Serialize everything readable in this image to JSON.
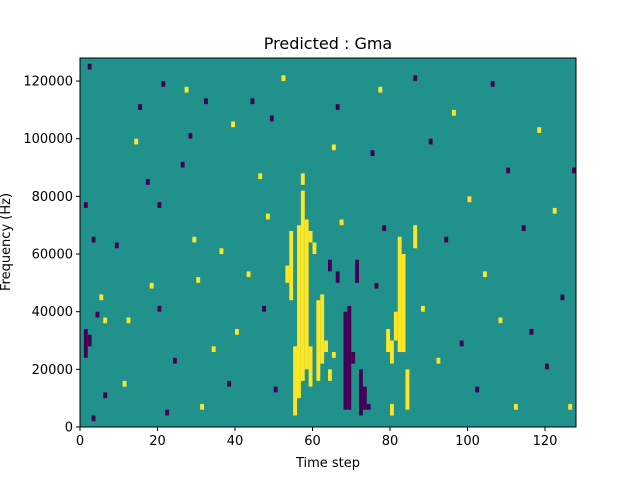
{
  "chart_data": {
    "type": "heatmap",
    "title": "Predicted : Gma",
    "xlabel": "Time step",
    "ylabel": "Frequency (Hz)",
    "xlim": [
      0,
      128
    ],
    "ylim": [
      0,
      128000
    ],
    "grid": false,
    "legend": "none",
    "x_ticks": [
      0,
      20,
      40,
      60,
      80,
      100,
      120
    ],
    "y_ticks": [
      0,
      20000,
      40000,
      60000,
      80000,
      100000,
      120000
    ],
    "n_time_steps": 128,
    "n_freq_bins": 128,
    "bin_height_hz": 1000,
    "value_range": [
      -1,
      1
    ],
    "colors": {
      "background": "#21918c",
      "low": "#440154",
      "high": "#fde725"
    },
    "cells": [
      {
        "t": 55,
        "f0": 4000,
        "f1": 28000,
        "v": 1
      },
      {
        "t": 56,
        "f0": 10000,
        "f1": 70000,
        "v": 1
      },
      {
        "t": 57,
        "f0": 16000,
        "f1": 82000,
        "v": 1
      },
      {
        "t": 58,
        "f0": 20000,
        "f1": 72000,
        "v": 1
      },
      {
        "t": 59,
        "f0": 14000,
        "f1": 28000,
        "v": 1
      },
      {
        "t": 54,
        "f0": 44000,
        "f1": 68000,
        "v": 1
      },
      {
        "t": 53,
        "f0": 50000,
        "f1": 56000,
        "v": 1
      },
      {
        "t": 60,
        "f0": 60000,
        "f1": 64000,
        "v": 1
      },
      {
        "t": 61,
        "f0": 16000,
        "f1": 44000,
        "v": 1
      },
      {
        "t": 62,
        "f0": 22000,
        "f1": 46000,
        "v": 1
      },
      {
        "t": 63,
        "f0": 26000,
        "f1": 30000,
        "v": 1
      },
      {
        "t": 64,
        "f0": 16000,
        "f1": 20000,
        "v": 1
      },
      {
        "t": 82,
        "f0": 26000,
        "f1": 66000,
        "v": 1
      },
      {
        "t": 83,
        "f0": 26000,
        "f1": 60000,
        "v": 1
      },
      {
        "t": 84,
        "f0": 6000,
        "f1": 20000,
        "v": 1
      },
      {
        "t": 81,
        "f0": 30000,
        "f1": 40000,
        "v": 1
      },
      {
        "t": 80,
        "f0": 4000,
        "f1": 8000,
        "v": 1
      },
      {
        "t": 86,
        "f0": 62000,
        "f1": 70000,
        "v": 1
      },
      {
        "t": 80,
        "f0": 22000,
        "f1": 30000,
        "v": 1
      },
      {
        "t": 79,
        "f0": 26000,
        "f1": 34000,
        "v": 1
      },
      {
        "t": 65,
        "f0": 24000,
        "f1": 26000,
        "v": 1
      },
      {
        "t": 57,
        "f0": 84000,
        "f1": 88000,
        "v": 1
      },
      {
        "t": 59,
        "f0": 64000,
        "f1": 68000,
        "v": 1
      },
      {
        "t": 68,
        "f0": 6000,
        "f1": 40000,
        "v": -1
      },
      {
        "t": 69,
        "f0": 6000,
        "f1": 42000,
        "v": -1
      },
      {
        "t": 70,
        "f0": 22000,
        "f1": 26000,
        "v": -1
      },
      {
        "t": 71,
        "f0": 50000,
        "f1": 58000,
        "v": -1
      },
      {
        "t": 72,
        "f0": 4000,
        "f1": 20000,
        "v": -1
      },
      {
        "t": 73,
        "f0": 6000,
        "f1": 14000,
        "v": -1
      },
      {
        "t": 74,
        "f0": 6000,
        "f1": 8000,
        "v": -1
      },
      {
        "t": 66,
        "f0": 50000,
        "f1": 54000,
        "v": -1
      },
      {
        "t": 64,
        "f0": 54000,
        "f1": 58000,
        "v": -1
      },
      {
        "t": 1,
        "f0": 24000,
        "f1": 34000,
        "v": -1
      },
      {
        "t": 2,
        "f0": 28000,
        "f1": 32000,
        "v": -1
      },
      {
        "t": 3,
        "f0": 2000,
        "f1": 4000,
        "v": -1
      },
      {
        "t": 2,
        "f0": 124000,
        "f1": 126000,
        "v": -1
      },
      {
        "t": 1,
        "f0": 76000,
        "f1": 78000,
        "v": -1
      },
      {
        "t": 3,
        "f0": 64000,
        "f1": 66000,
        "v": -1
      },
      {
        "t": 4,
        "f0": 38000,
        "f1": 40000,
        "v": -1
      },
      {
        "t": 5,
        "f0": 44000,
        "f1": 46000,
        "v": 1
      },
      {
        "t": 6,
        "f0": 10000,
        "f1": 12000,
        "v": -1
      },
      {
        "t": 6,
        "f0": 36000,
        "f1": 38000,
        "v": 1
      },
      {
        "t": 9,
        "f0": 62000,
        "f1": 64000,
        "v": -1
      },
      {
        "t": 11,
        "f0": 14000,
        "f1": 16000,
        "v": 1
      },
      {
        "t": 12,
        "f0": 36000,
        "f1": 38000,
        "v": 1
      },
      {
        "t": 14,
        "f0": 98000,
        "f1": 100000,
        "v": 1
      },
      {
        "t": 15,
        "f0": 110000,
        "f1": 112000,
        "v": -1
      },
      {
        "t": 17,
        "f0": 84000,
        "f1": 86000,
        "v": -1
      },
      {
        "t": 18,
        "f0": 48000,
        "f1": 50000,
        "v": 1
      },
      {
        "t": 20,
        "f0": 40000,
        "f1": 42000,
        "v": -1
      },
      {
        "t": 20,
        "f0": 76000,
        "f1": 78000,
        "v": -1
      },
      {
        "t": 21,
        "f0": 118000,
        "f1": 120000,
        "v": -1
      },
      {
        "t": 22,
        "f0": 4000,
        "f1": 6000,
        "v": -1
      },
      {
        "t": 24,
        "f0": 22000,
        "f1": 24000,
        "v": -1
      },
      {
        "t": 26,
        "f0": 90000,
        "f1": 92000,
        "v": -1
      },
      {
        "t": 27,
        "f0": 116000,
        "f1": 118000,
        "v": 1
      },
      {
        "t": 28,
        "f0": 100000,
        "f1": 102000,
        "v": -1
      },
      {
        "t": 29,
        "f0": 64000,
        "f1": 66000,
        "v": 1
      },
      {
        "t": 30,
        "f0": 50000,
        "f1": 52000,
        "v": 1
      },
      {
        "t": 31,
        "f0": 6000,
        "f1": 8000,
        "v": 1
      },
      {
        "t": 32,
        "f0": 112000,
        "f1": 114000,
        "v": -1
      },
      {
        "t": 34,
        "f0": 26000,
        "f1": 28000,
        "v": 1
      },
      {
        "t": 36,
        "f0": 60000,
        "f1": 62000,
        "v": 1
      },
      {
        "t": 38,
        "f0": 14000,
        "f1": 16000,
        "v": -1
      },
      {
        "t": 39,
        "f0": 104000,
        "f1": 106000,
        "v": 1
      },
      {
        "t": 40,
        "f0": 32000,
        "f1": 34000,
        "v": 1
      },
      {
        "t": 43,
        "f0": 52000,
        "f1": 54000,
        "v": 1
      },
      {
        "t": 44,
        "f0": 112000,
        "f1": 114000,
        "v": -1
      },
      {
        "t": 46,
        "f0": 86000,
        "f1": 88000,
        "v": 1
      },
      {
        "t": 47,
        "f0": 40000,
        "f1": 42000,
        "v": -1
      },
      {
        "t": 48,
        "f0": 72000,
        "f1": 74000,
        "v": 1
      },
      {
        "t": 49,
        "f0": 106000,
        "f1": 108000,
        "v": -1
      },
      {
        "t": 50,
        "f0": 12000,
        "f1": 14000,
        "v": -1
      },
      {
        "t": 52,
        "f0": 120000,
        "f1": 122000,
        "v": 1
      },
      {
        "t": 65,
        "f0": 96000,
        "f1": 98000,
        "v": 1
      },
      {
        "t": 66,
        "f0": 110000,
        "f1": 112000,
        "v": -1
      },
      {
        "t": 67,
        "f0": 70000,
        "f1": 72000,
        "v": 1
      },
      {
        "t": 75,
        "f0": 94000,
        "f1": 96000,
        "v": -1
      },
      {
        "t": 76,
        "f0": 48000,
        "f1": 50000,
        "v": -1
      },
      {
        "t": 77,
        "f0": 116000,
        "f1": 118000,
        "v": 1
      },
      {
        "t": 78,
        "f0": 68000,
        "f1": 70000,
        "v": -1
      },
      {
        "t": 86,
        "f0": 120000,
        "f1": 122000,
        "v": -1
      },
      {
        "t": 88,
        "f0": 40000,
        "f1": 42000,
        "v": 1
      },
      {
        "t": 90,
        "f0": 98000,
        "f1": 100000,
        "v": -1
      },
      {
        "t": 92,
        "f0": 22000,
        "f1": 24000,
        "v": 1
      },
      {
        "t": 94,
        "f0": 64000,
        "f1": 66000,
        "v": -1
      },
      {
        "t": 96,
        "f0": 108000,
        "f1": 110000,
        "v": 1
      },
      {
        "t": 98,
        "f0": 28000,
        "f1": 30000,
        "v": -1
      },
      {
        "t": 100,
        "f0": 78000,
        "f1": 80000,
        "v": 1
      },
      {
        "t": 102,
        "f0": 12000,
        "f1": 14000,
        "v": -1
      },
      {
        "t": 104,
        "f0": 52000,
        "f1": 54000,
        "v": 1
      },
      {
        "t": 106,
        "f0": 118000,
        "f1": 120000,
        "v": -1
      },
      {
        "t": 108,
        "f0": 36000,
        "f1": 38000,
        "v": 1
      },
      {
        "t": 110,
        "f0": 88000,
        "f1": 90000,
        "v": -1
      },
      {
        "t": 112,
        "f0": 6000,
        "f1": 8000,
        "v": 1
      },
      {
        "t": 114,
        "f0": 68000,
        "f1": 70000,
        "v": -1
      },
      {
        "t": 116,
        "f0": 32000,
        "f1": 34000,
        "v": -1
      },
      {
        "t": 118,
        "f0": 102000,
        "f1": 104000,
        "v": 1
      },
      {
        "t": 120,
        "f0": 20000,
        "f1": 22000,
        "v": -1
      },
      {
        "t": 122,
        "f0": 74000,
        "f1": 76000,
        "v": 1
      },
      {
        "t": 124,
        "f0": 44000,
        "f1": 46000,
        "v": -1
      },
      {
        "t": 126,
        "f0": 6000,
        "f1": 8000,
        "v": 1
      },
      {
        "t": 127,
        "f0": 88000,
        "f1": 90000,
        "v": -1
      }
    ]
  }
}
